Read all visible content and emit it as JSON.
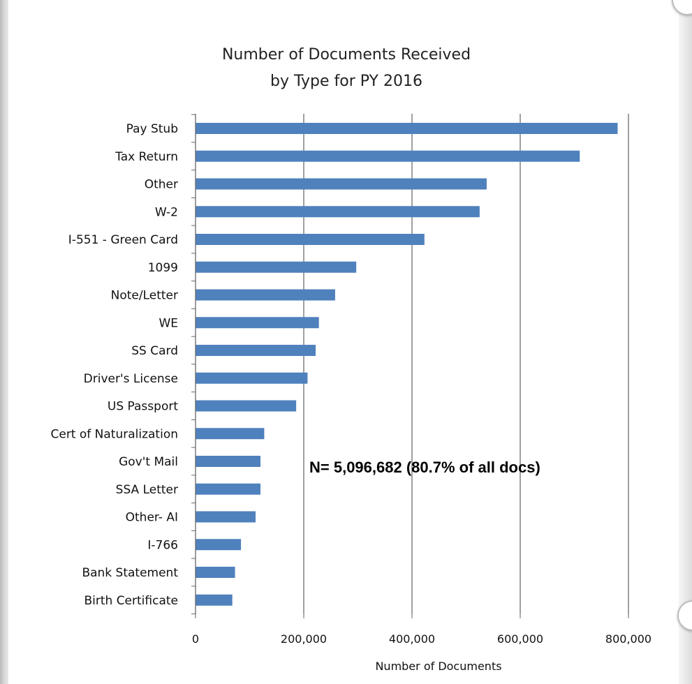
{
  "chart_data": {
    "type": "bar",
    "orientation": "horizontal",
    "title": [
      "Number of Documents Received",
      "by Type for PY 2016"
    ],
    "xlabel": "Number of Documents",
    "ylabel": "",
    "xlim": [
      0,
      800000
    ],
    "x_ticks": [
      0,
      200000,
      400000,
      600000,
      800000
    ],
    "x_tick_labels": [
      "0",
      "200,000",
      "400,000",
      "600,000",
      "800,000"
    ],
    "grid": "vertical",
    "bar_color": "#4f81bd",
    "categories": [
      "Pay Stub",
      "Tax Return",
      "Other",
      "W-2",
      "I-551 - Green Card",
      "1099",
      "Note/Letter",
      "WE",
      "SS Card",
      "Driver's License",
      "US Passport",
      "Cert of Naturalization",
      "Gov't Mail",
      "SSA Letter",
      "Other- AI",
      "I-766",
      "Bank Statement",
      "Birth Certificate"
    ],
    "values": [
      780000,
      710000,
      538000,
      525000,
      423000,
      297000,
      258000,
      228000,
      222000,
      207000,
      186000,
      127000,
      120000,
      120000,
      111000,
      84000,
      73000,
      68000
    ],
    "annotation": "N= 5,096,682 (80.7% of all docs)"
  }
}
